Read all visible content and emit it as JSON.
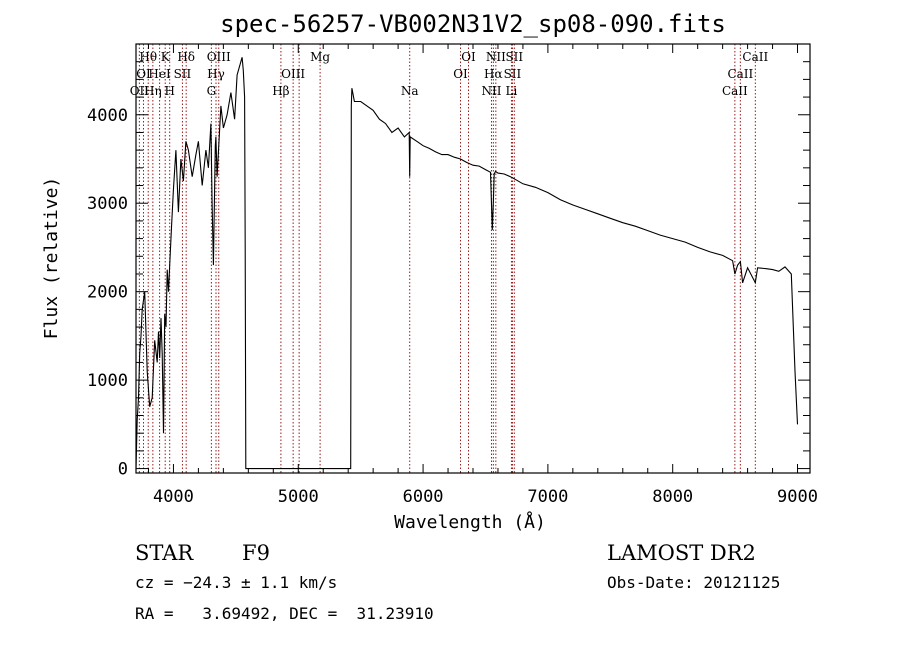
{
  "chart_data": {
    "type": "line",
    "title": "spec-56257-VB002N31V2_sp08-090.fits",
    "xlabel": "Wavelength (Å)",
    "ylabel": "Flux (relative)",
    "xlim": [
      3700,
      9100
    ],
    "ylim": [
      -50,
      4800
    ],
    "xticks": [
      4000,
      5000,
      6000,
      7000,
      8000,
      9000
    ],
    "xtick_labels": [
      "4000",
      "5000",
      "6000",
      "7000",
      "8000",
      "9000"
    ],
    "yticks": [
      0,
      1000,
      2000,
      3000,
      4000
    ],
    "ytick_labels": [
      "0",
      "1000",
      "2000",
      "3000",
      "4000"
    ],
    "x_minor_step": 200,
    "y_minor_step": 200,
    "grid": false,
    "series": [
      {
        "x": [
          3700,
          3710,
          3720,
          3730,
          3740,
          3750,
          3770,
          3790,
          3810,
          3830,
          3850,
          3870,
          3880,
          3890,
          3900,
          3910,
          3920,
          3930,
          3940,
          3950,
          3960,
          3970,
          3985,
          4000,
          4020,
          4040,
          4060,
          4080,
          4100,
          4120,
          4150,
          4180,
          4200,
          4230,
          4260,
          4280,
          4300,
          4310,
          4320,
          4335,
          4340,
          4350,
          4380,
          4400,
          4430,
          4460,
          4490,
          4510,
          4530,
          4550,
          4560,
          4570,
          4575,
          4580,
          4600,
          5000,
          5400,
          5420,
          5425,
          5430,
          5450,
          5500,
          5550,
          5600,
          5650,
          5700,
          5750,
          5800,
          5850,
          5889,
          5893,
          5897,
          5950,
          6000,
          6050,
          6100,
          6150,
          6200,
          6250,
          6300,
          6350,
          6400,
          6450,
          6500,
          6540,
          6555,
          6563,
          6570,
          6580,
          6600,
          6650,
          6700,
          6750,
          6800,
          6900,
          7000,
          7100,
          7200,
          7300,
          7400,
          7500,
          7600,
          7700,
          7800,
          7900,
          8000,
          8100,
          8200,
          8300,
          8400,
          8480,
          8498,
          8520,
          8542,
          8560,
          8600,
          8662,
          8680,
          8750,
          8800,
          8850,
          8900,
          8950,
          8980,
          9000
        ],
        "y": [
          0,
          550,
          800,
          1300,
          1500,
          1800,
          2000,
          1100,
          700,
          800,
          1450,
          1200,
          1550,
          1250,
          1700,
          1300,
          400,
          1750,
          1600,
          2250,
          2000,
          2300,
          2750,
          3150,
          3600,
          2900,
          3500,
          3250,
          3700,
          3600,
          3300,
          3550,
          3700,
          3200,
          3600,
          3400,
          3900,
          3000,
          2300,
          3650,
          3750,
          3300,
          4100,
          3850,
          4000,
          4250,
          3950,
          4450,
          4550,
          4650,
          4500,
          4200,
          2500,
          0,
          0,
          0,
          0,
          0,
          4100,
          4300,
          4150,
          4150,
          4100,
          4050,
          3950,
          3900,
          3800,
          3850,
          3750,
          3800,
          3300,
          3750,
          3700,
          3650,
          3620,
          3580,
          3550,
          3550,
          3520,
          3500,
          3460,
          3430,
          3420,
          3380,
          3350,
          2700,
          3000,
          3330,
          3360,
          3340,
          3330,
          3300,
          3260,
          3220,
          3180,
          3120,
          3040,
          2980,
          2930,
          2880,
          2830,
          2780,
          2740,
          2690,
          2640,
          2600,
          2560,
          2500,
          2450,
          2410,
          2350,
          2200,
          2300,
          2340,
          2100,
          2270,
          2100,
          2270,
          2260,
          2250,
          2230,
          2280,
          2200,
          1100,
          500
        ]
      }
    ],
    "line_markers": [
      {
        "wavelength": 3727,
        "label": "OII",
        "row": 3
      },
      {
        "wavelength": 3760,
        "label": "OI",
        "row": 2
      },
      {
        "wavelength": 3798,
        "label": "Hθ",
        "row": 1
      },
      {
        "wavelength": 3835,
        "label": "Hη",
        "row": 3
      },
      {
        "wavelength": 3889,
        "label": "HeI",
        "row": 2
      },
      {
        "wavelength": 3934,
        "label": "K",
        "row": 1
      },
      {
        "wavelength": 3970,
        "label": "H",
        "row": 3
      },
      {
        "wavelength": 4072,
        "label": "SII",
        "row": 2
      },
      {
        "wavelength": 4102,
        "label": "Hδ",
        "row": 1
      },
      {
        "wavelength": 4304,
        "label": "G",
        "row": 3
      },
      {
        "wavelength": 4341,
        "label": "Hγ",
        "row": 2
      },
      {
        "wavelength": 4363,
        "label": "OIII",
        "row": 1
      },
      {
        "wavelength": 4861,
        "label": "Hβ",
        "row": 3
      },
      {
        "wavelength": 4959,
        "label": "OIII",
        "row": 2
      },
      {
        "wavelength": 5007,
        "label": "",
        "row": 0
      },
      {
        "wavelength": 5175,
        "label": "Mg",
        "row": 1
      },
      {
        "wavelength": 5893,
        "label": "Na",
        "row": 3
      },
      {
        "wavelength": 6300,
        "label": "OI",
        "row": 2
      },
      {
        "wavelength": 6364,
        "label": "OI",
        "row": 1
      },
      {
        "wavelength": 6548,
        "label": "NII",
        "row": 3
      },
      {
        "wavelength": 6563,
        "label": "Hα",
        "row": 2
      },
      {
        "wavelength": 6583,
        "label": "NII",
        "row": 1
      },
      {
        "wavelength": 6708,
        "label": "Li",
        "row": 3
      },
      {
        "wavelength": 6716,
        "label": "SII",
        "row": 2
      },
      {
        "wavelength": 6731,
        "label": "SII",
        "row": 1
      },
      {
        "wavelength": 8498,
        "label": "CaII",
        "row": 3
      },
      {
        "wavelength": 8542,
        "label": "CaII",
        "row": 2
      },
      {
        "wavelength": 8662,
        "label": "CaII",
        "row": 1
      }
    ]
  },
  "info": {
    "class": "STAR",
    "subclass": "F9",
    "survey": "LAMOST DR2",
    "cz": "cz = −24.3 ± 1.1 km/s",
    "obs_date": "Obs-Date: 20121125",
    "coords": "RA =   3.69492, DEC =  31.23910"
  }
}
